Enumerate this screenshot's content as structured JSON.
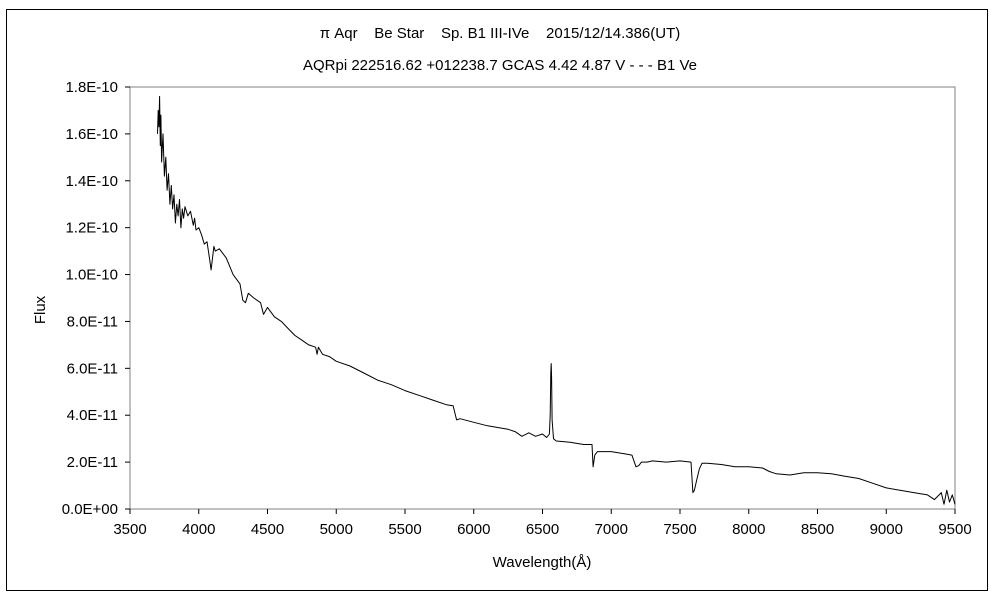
{
  "chart_data": {
    "type": "line",
    "title": "π Aqr    Be Star    Sp. B1 III-IVe    2015/12/14.386(UT)",
    "subtitle": "AQRpi 222516.62 +012238.7 GCAS 4.42 4.87 V - - - B1 Ve",
    "xlabel": "Wavelength(Å)",
    "ylabel": "Flux",
    "xlim": [
      3500,
      9500
    ],
    "ylim": [
      0,
      1.8e-10
    ],
    "x_ticks": [
      3500,
      4000,
      4500,
      5000,
      5500,
      6000,
      6500,
      7000,
      7500,
      8000,
      8500,
      9000,
      9500
    ],
    "x_tick_labels": [
      "3500",
      "4000",
      "4500",
      "5000",
      "5500",
      "6000",
      "6500",
      "7000",
      "7500",
      "8000",
      "8500",
      "9000",
      "9500"
    ],
    "y_ticks": [
      0,
      2e-11,
      4e-11,
      6e-11,
      8e-11,
      1e-10,
      1.2e-10,
      1.4e-10,
      1.6e-10,
      1.8e-10
    ],
    "y_tick_labels": [
      "0.0E+00",
      "2.0E-11",
      "4.0E-11",
      "6.0E-11",
      "8.0E-11",
      "1.0E-10",
      "1.2E-10",
      "1.4E-10",
      "1.6E-10",
      "1.8E-10"
    ],
    "grid": false,
    "legend": "none",
    "line_color": "#000000",
    "series": [
      {
        "x": [
          3700,
          3705,
          3710,
          3715,
          3720,
          3725,
          3730,
          3740,
          3750,
          3760,
          3770,
          3780,
          3790,
          3800,
          3810,
          3820,
          3830,
          3840,
          3850,
          3860,
          3870,
          3880,
          3890,
          3900,
          3920,
          3940,
          3960,
          3970,
          3980,
          4000,
          4020,
          4040,
          4060,
          4080,
          4090,
          4100,
          4110,
          4120,
          4150,
          4200,
          4250,
          4300,
          4320,
          4340,
          4360,
          4400,
          4450,
          4471,
          4500,
          4550,
          4600,
          4650,
          4700,
          4750,
          4800,
          4850,
          4861,
          4870,
          4900,
          4950,
          5000,
          5100,
          5200,
          5300,
          5400,
          5500,
          5600,
          5700,
          5800,
          5850,
          5875,
          5900,
          6000,
          6100,
          6200,
          6250,
          6300,
          6350,
          6400,
          6450,
          6500,
          6530,
          6550,
          6556,
          6560,
          6563,
          6566,
          6570,
          6580,
          6600,
          6700,
          6800,
          6860,
          6868,
          6880,
          6900,
          7000,
          7100,
          7150,
          7180,
          7200,
          7220,
          7260,
          7300,
          7400,
          7500,
          7580,
          7594,
          7605,
          7620,
          7640,
          7660,
          7700,
          7800,
          7900,
          8000,
          8100,
          8150,
          8200,
          8300,
          8400,
          8500,
          8600,
          8700,
          8800,
          8900,
          9000,
          9100,
          9200,
          9300,
          9350,
          9400,
          9420,
          9440,
          9460,
          9480,
          9500
        ],
        "y": [
          1.6e-10,
          1.7e-10,
          1.63e-10,
          1.76e-10,
          1.55e-10,
          1.68e-10,
          1.48e-10,
          1.6e-10,
          1.42e-10,
          1.5e-10,
          1.36e-10,
          1.43e-10,
          1.3e-10,
          1.38e-10,
          1.28e-10,
          1.34e-10,
          1.22e-10,
          1.3e-10,
          1.25e-10,
          1.32e-10,
          1.2e-10,
          1.28e-10,
          1.24e-10,
          1.29e-10,
          1.25e-10,
          1.27e-10,
          1.21e-10,
          1.24e-10,
          1.19e-10,
          1.2e-10,
          1.17e-10,
          1.13e-10,
          1.14e-10,
          1.06e-10,
          1.02e-10,
          1.07e-10,
          1.12e-10,
          1.1e-10,
          1.11e-10,
          1.07e-10,
          1e-10,
          9.6e-11,
          8.9e-11,
          8.8e-11,
          9.2e-11,
          9e-11,
          8.8e-11,
          8.3e-11,
          8.6e-11,
          8.2e-11,
          8e-11,
          7.7e-11,
          7.4e-11,
          7.2e-11,
          7e-11,
          6.9e-11,
          6.6e-11,
          6.9e-11,
          6.6e-11,
          6.5e-11,
          6.3e-11,
          6.1e-11,
          5.8e-11,
          5.5e-11,
          5.3e-11,
          5.05e-11,
          4.85e-11,
          4.65e-11,
          4.45e-11,
          4.4e-11,
          3.8e-11,
          3.85e-11,
          3.7e-11,
          3.55e-11,
          3.45e-11,
          3.4e-11,
          3.3e-11,
          3.1e-11,
          3.25e-11,
          3.1e-11,
          3.2e-11,
          3.05e-11,
          3.2e-11,
          4e-11,
          5.8e-11,
          6.2e-11,
          5.6e-11,
          3.8e-11,
          3e-11,
          2.9e-11,
          2.85e-11,
          2.75e-11,
          2.75e-11,
          1.8e-11,
          2.3e-11,
          2.45e-11,
          2.45e-11,
          2.35e-11,
          2.3e-11,
          1.8e-11,
          1.85e-11,
          2e-11,
          2e-11,
          2.05e-11,
          2e-11,
          2.05e-11,
          2e-11,
          7e-12,
          8e-12,
          1.2e-11,
          1.7e-11,
          1.95e-11,
          1.95e-11,
          1.9e-11,
          1.8e-11,
          1.8e-11,
          1.75e-11,
          1.6e-11,
          1.5e-11,
          1.45e-11,
          1.55e-11,
          1.55e-11,
          1.5e-11,
          1.4e-11,
          1.3e-11,
          1.1e-11,
          9e-12,
          8e-12,
          7e-12,
          6e-12,
          4e-12,
          7e-12,
          2e-12,
          8e-12,
          3e-12,
          6e-12,
          2e-12
        ]
      }
    ]
  }
}
